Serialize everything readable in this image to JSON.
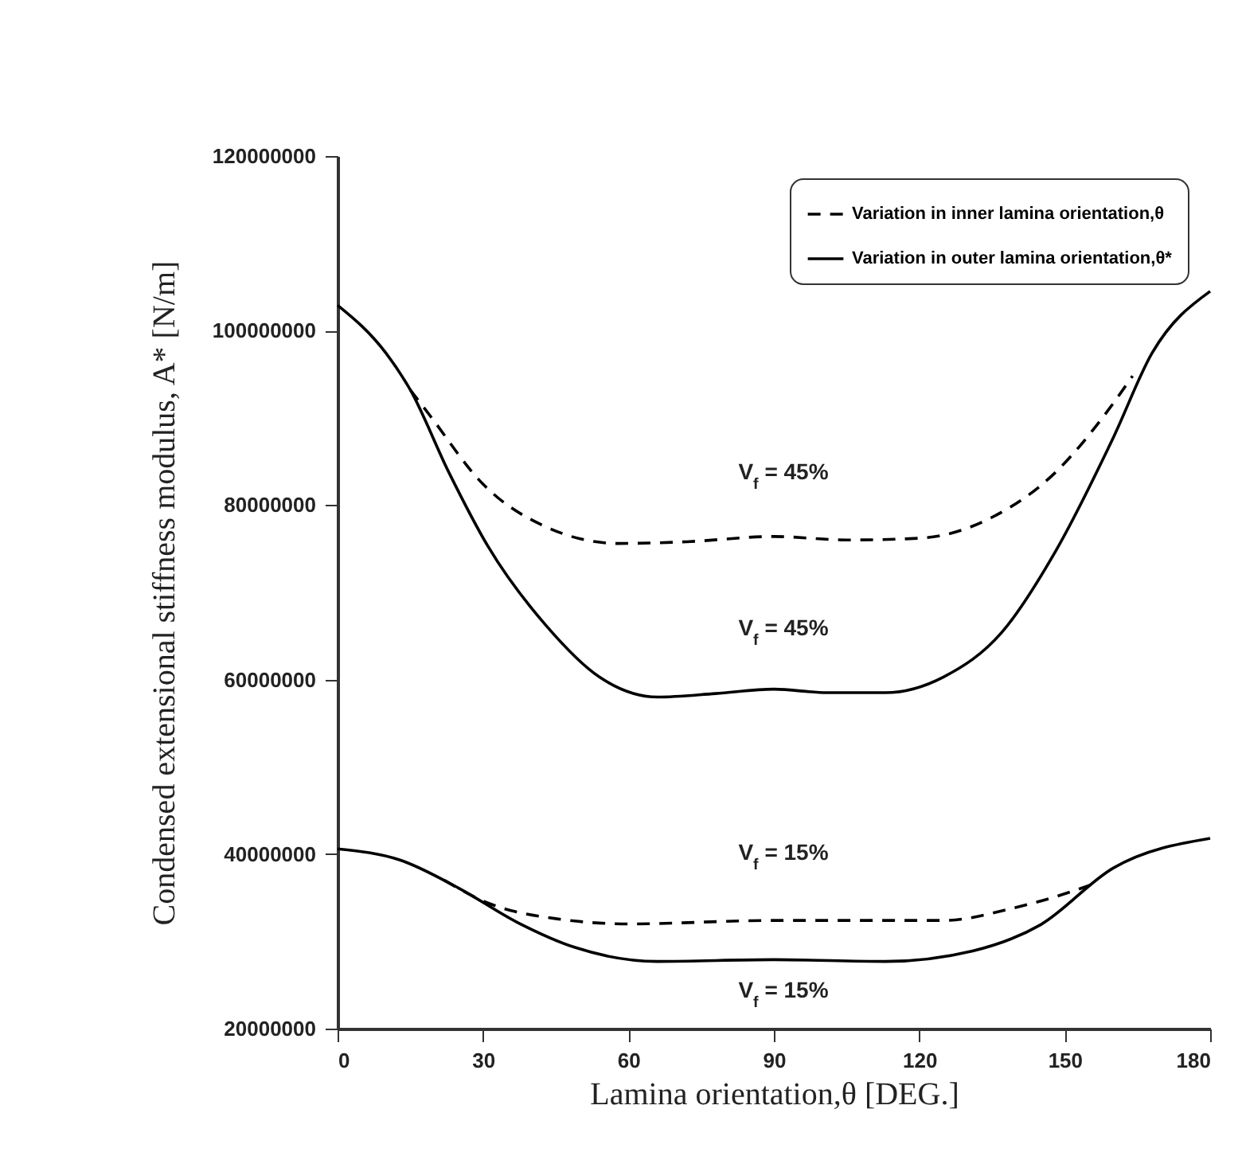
{
  "chart_data": {
    "type": "line",
    "xlabel": "Lamina orientation,θ    [DEG.]",
    "ylabel": "Condensed extensional stiffness modulus, A* [N/m]",
    "xlim": [
      0,
      180
    ],
    "ylim": [
      20000000,
      120000000
    ],
    "xticks": [
      0,
      30,
      60,
      90,
      120,
      150,
      180
    ],
    "yticks": [
      20000000,
      40000000,
      60000000,
      80000000,
      100000000,
      120000000
    ],
    "grid": false,
    "legend": "top right",
    "series": [
      {
        "name": "Variation in inner lamina orientation,θ",
        "color": "#000000",
        "line_style": "dashed",
        "x": [
          15,
          19,
          30,
          43,
          58,
          72,
          90,
          105,
          120,
          135,
          148,
          159,
          164
        ],
        "values": [
          93200000,
          90300000,
          82400000,
          77500000,
          75600000,
          75800000,
          76400000,
          76000000,
          76200000,
          78600000,
          83700000,
          90900000,
          94800000
        ]
      },
      {
        "name": "Variation in outer lamina orientation,θ*",
        "color": "#000000",
        "line_style": "solid",
        "x": [
          0,
          10,
          15,
          23,
          31,
          43,
          54,
          66,
          78,
          90,
          101,
          113,
          125,
          137,
          148,
          160,
          168,
          180
        ],
        "values": [
          102900000,
          97400000,
          93200000,
          83700000,
          75300000,
          66200000,
          60300000,
          58000000,
          58400000,
          58900000,
          58500000,
          58500000,
          60300000,
          65400000,
          74600000,
          87700000,
          97400000,
          104500000
        ]
      },
      {
        "color": "#000000",
        "line_style": "dashed",
        "x": [
          22,
          31,
          45,
          60,
          90,
          125,
          140,
          148,
          156
        ],
        "values": [
          37000000,
          34400000,
          32600000,
          32000000,
          32400000,
          32400000,
          33900000,
          35100000,
          36600000
        ]
      },
      {
        "color": "#000000",
        "line_style": "solid",
        "x": [
          0,
          13,
          25,
          37,
          49,
          66,
          90,
          113,
          131,
          145,
          160,
          180
        ],
        "values": [
          40600000,
          39300000,
          36100000,
          32200000,
          29300000,
          27700000,
          27900000,
          27700000,
          28900000,
          31900000,
          38400000,
          41800000
        ]
      }
    ],
    "annotations": [
      "V$_{f}$ = 45%",
      "V$_{f}$ = 45%",
      "V$_{f}$ = 15%",
      "V$_{f}$ = 15%"
    ]
  }
}
